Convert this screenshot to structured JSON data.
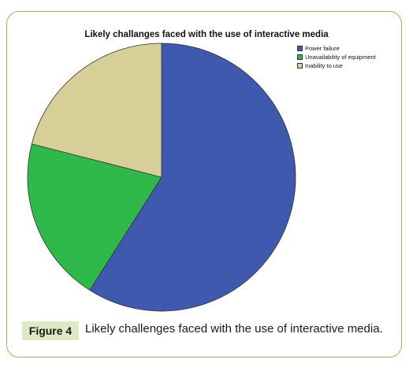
{
  "chart_data": {
    "type": "pie",
    "title": "Likely challanges faced with the use of interactive media",
    "categories": [
      "Power failure",
      "Unavailability of equipment",
      "Inability to use"
    ],
    "values": [
      59,
      20,
      21
    ],
    "colors": [
      "#3f59ae",
      "#2fb94a",
      "#d6cf98"
    ],
    "legend": "top-right"
  },
  "caption": {
    "tag": "Figure 4",
    "text": "Likely challenges faced with the use of interactive media."
  }
}
